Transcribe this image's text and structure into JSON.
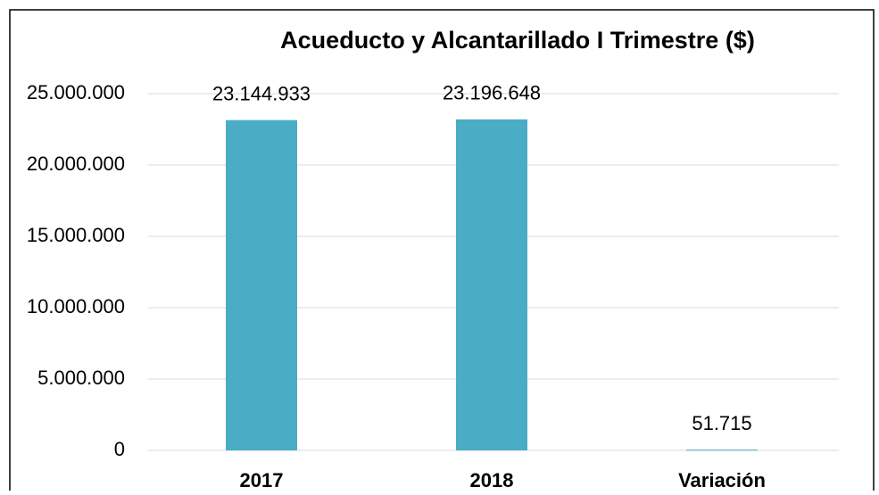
{
  "chart_data": {
    "type": "bar",
    "title": "Acueducto y Alcantarillado I Trimestre ($)",
    "categories": [
      "2017",
      "2018",
      "Variación"
    ],
    "values": [
      23144933,
      23196648,
      51715
    ],
    "value_labels": [
      "23.144.933",
      "23.196.648",
      "51.715"
    ],
    "color": "#4bacc6",
    "ylim": [
      0,
      25000000
    ],
    "yticks": [
      0,
      {
        "value": 5000000,
        "label": "5.000.000"
      },
      {
        "value": 10000000,
        "label": "10.000.000"
      },
      {
        "value": 15000000,
        "label": "15.000.000"
      },
      {
        "value": 20000000,
        "label": "20.000.000"
      },
      {
        "value": 25000000,
        "label": "25.000.000"
      }
    ],
    "grid": true
  }
}
